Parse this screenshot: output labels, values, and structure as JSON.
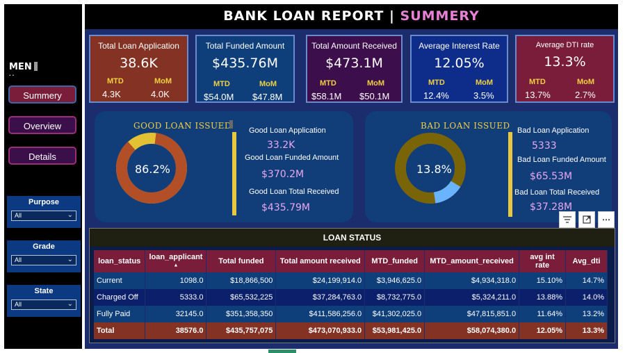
{
  "title": {
    "main": "BANK  LOAN  REPORT | ",
    "accent": "SUMMERY"
  },
  "sidebar": {
    "menu_label": "MEN",
    "nav": [
      {
        "label": "Summery"
      },
      {
        "label": "Overview"
      },
      {
        "label": "Details"
      }
    ],
    "filters": [
      {
        "label": "Purpose",
        "value": "All"
      },
      {
        "label": "Grade",
        "value": "All"
      },
      {
        "label": "State",
        "value": "All"
      }
    ]
  },
  "kpis": [
    {
      "label": "Total Loan Application",
      "value": "38.6K",
      "mtd_label": "MTD",
      "mom_label": "MoM",
      "mtd": "4.3K",
      "mom": "4.0K"
    },
    {
      "label": "Total Funded Amount",
      "value": "$435.76M",
      "mtd_label": "MTD",
      "mom_label": "MoM",
      "mtd": "$54.0M",
      "mom": "$47.8M"
    },
    {
      "label": "Total Amount Received",
      "value": "$473.1M",
      "mtd_label": "MTD",
      "mom_label": "MoM",
      "mtd": "$58.1M",
      "mom": "$50.1M"
    },
    {
      "label": "Average Interest Rate",
      "value": "12.05%",
      "mtd_label": "MTD",
      "mom_label": "MoM",
      "mtd": "12.4%",
      "mom": "3.5%"
    },
    {
      "label": "Average DTI rate",
      "value": "13.3%",
      "mtd_label": "MTD",
      "mom_label": "MoM",
      "mtd": "13.7%",
      "mom": "2.7%"
    }
  ],
  "good": {
    "title": "GOOD LOAN ISSUED",
    "percent_label": "86.2%",
    "percent": 0.862,
    "application_label": "Good Loan Application",
    "application": "33.2K",
    "funded_label": "Good Loan Funded Amount",
    "funded": "$370.2M",
    "received_label": "Good Loan Total Received",
    "received": "$435.79M",
    "colors": {
      "main": "#b24f27",
      "rest": "#e2c234"
    }
  },
  "bad": {
    "title": "BAD LOAN ISSUED",
    "percent_label": "13.8%",
    "percent": 0.138,
    "application_label": "Bad Loan Application",
    "application": "5333",
    "funded_label": "Bad Loan Funded Amount",
    "funded": "$65.53M",
    "received_label": "Bad Loan Total Received",
    "received": "$37.28M",
    "colors": {
      "main": "#6ab4ff",
      "rest": "#7a6408"
    }
  },
  "loan_status": {
    "title": "LOAN STATUS",
    "columns": [
      "loan_status",
      "loan_applicant",
      "Total funded",
      "Total amount received",
      "MTD_funded",
      "MTD_amount_received",
      "avg int rate",
      "Avg_dti"
    ],
    "rows": [
      [
        "Current",
        "1098.0",
        "$18,866,500",
        "$24,199,914.0",
        "$3,946,625.0",
        "$4,934,318.0",
        "15.10%",
        "14.7%"
      ],
      [
        "Charged Off",
        "5333.0",
        "$65,532,225",
        "$37,284,763.0",
        "$8,732,775.0",
        "$5,324,211.0",
        "13.88%",
        "14.0%"
      ],
      [
        "Fully Paid",
        "32145.0",
        "$351,358,350",
        "$411,586,256.0",
        "$41,302,025.0",
        "$47,815,851.0",
        "11.64%",
        "13.2%"
      ]
    ],
    "total": [
      "Total",
      "38576.0",
      "$435,757,075",
      "$473,070,933.0",
      "$53,981,425.0",
      "$58,074,380.0",
      "12.05%",
      "13.3%"
    ]
  },
  "icons": {
    "filter": "filter-icon",
    "focus": "focus-mode-icon",
    "more": "more-options-icon"
  }
}
